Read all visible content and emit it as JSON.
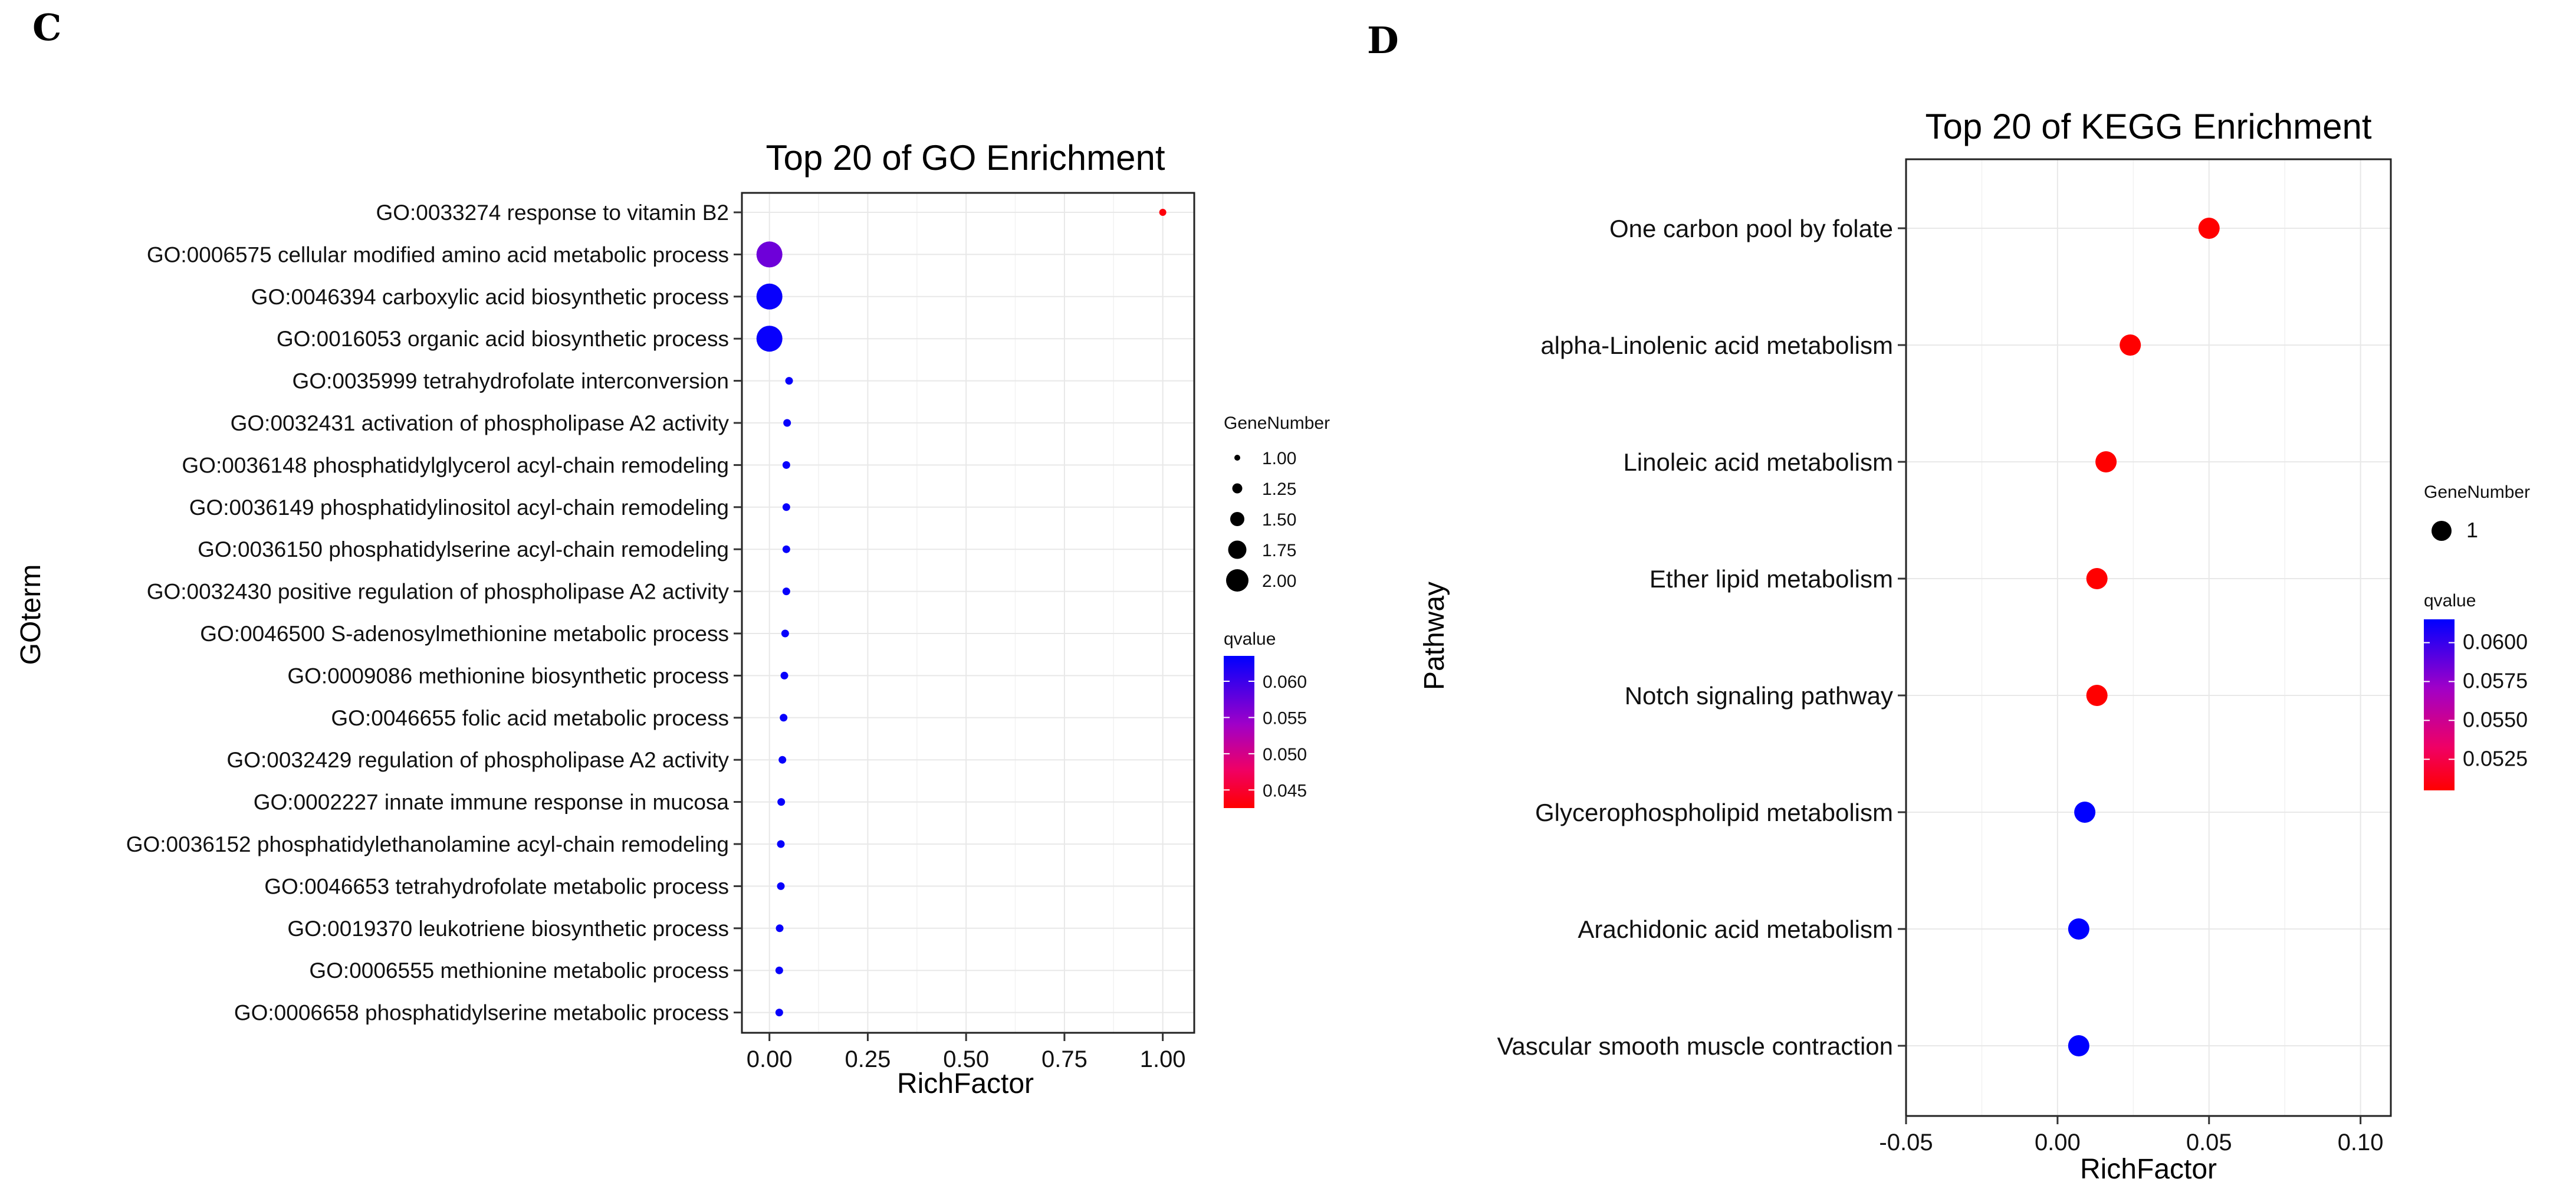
{
  "panels": [
    {
      "letter": "C"
    },
    {
      "letter": "D"
    }
  ],
  "chart_data": [
    {
      "type": "scatter",
      "title": "Top 20 of GO Enrichment",
      "xlabel": "RichFactor",
      "ylabel": "GOterm",
      "xlim": [
        -0.07,
        1.08
      ],
      "xticks": [
        0.0,
        0.25,
        0.5,
        0.75,
        1.0
      ],
      "xtick_labels": [
        "0.00",
        "0.25",
        "0.50",
        "0.75",
        "1.00"
      ],
      "grid": true,
      "categories": [
        "GO:0033274 response to vitamin B2",
        "GO:0006575 cellular modified amino acid metabolic process",
        "GO:0046394 carboxylic acid biosynthetic process",
        "GO:0016053 organic acid biosynthetic process",
        "GO:0035999 tetrahydrofolate interconversion",
        "GO:0032431 activation of phospholipase A2 activity",
        "GO:0036148 phosphatidylglycerol acyl-chain remodeling",
        "GO:0036149 phosphatidylinositol acyl-chain remodeling",
        "GO:0036150 phosphatidylserine acyl-chain remodeling",
        "GO:0032430 positive regulation of phospholipase A2 activity",
        "GO:0046500 S-adenosylmethionine metabolic process",
        "GO:0009086 methionine biosynthetic process",
        "GO:0046655 folic acid metabolic process",
        "GO:0032429 regulation of phospholipase A2 activity",
        "GO:0002227 innate immune response in mucosa",
        "GO:0036152 phosphatidylethanolamine acyl-chain remodeling",
        "GO:0046653 tetrahydrofolate metabolic process",
        "GO:0019370 leukotriene biosynthetic process",
        "GO:0006555 methionine metabolic process",
        "GO:0006658 phosphatidylserine metabolic process"
      ],
      "rich_factor": [
        1.0,
        0.0,
        0.0,
        0.0,
        0.05,
        0.045,
        0.043,
        0.043,
        0.043,
        0.043,
        0.04,
        0.038,
        0.036,
        0.033,
        0.03,
        0.029,
        0.029,
        0.026,
        0.025,
        0.025
      ],
      "gene_number": [
        1,
        2,
        2,
        2,
        1,
        1,
        1,
        1,
        1,
        1,
        1,
        1,
        1,
        1,
        1,
        1,
        1,
        1,
        1,
        1
      ],
      "qvalue": [
        0.043,
        0.057,
        0.063,
        0.063,
        0.063,
        0.063,
        0.063,
        0.063,
        0.063,
        0.063,
        0.063,
        0.063,
        0.063,
        0.063,
        0.063,
        0.063,
        0.063,
        0.063,
        0.063,
        0.063
      ],
      "legend": {
        "size_title": "GeneNumber",
        "size_labels": [
          "1.00",
          "1.25",
          "1.50",
          "1.75",
          "2.00"
        ],
        "size_values": [
          1.0,
          1.25,
          1.5,
          1.75,
          2.0
        ],
        "color_title": "qvalue",
        "color_labels": [
          "0.060",
          "0.055",
          "0.050",
          "0.045"
        ],
        "color_values": [
          0.06,
          0.055,
          0.05,
          0.045
        ],
        "color_range": [
          0.0425,
          0.0635
        ],
        "color_low": "#ff0000",
        "color_high": "#0000ff",
        "position": "right"
      }
    },
    {
      "type": "scatter",
      "title": "Top 20 of KEGG Enrichment",
      "xlabel": "RichFactor",
      "ylabel": "Pathway",
      "xlim": [
        -0.05,
        0.11
      ],
      "xticks": [
        -0.05,
        0.0,
        0.05,
        0.1
      ],
      "xtick_labels": [
        "-0.05",
        "0.00",
        "0.05",
        "0.10"
      ],
      "grid": true,
      "categories": [
        "One carbon pool by folate",
        "alpha-Linolenic acid metabolism",
        "Linoleic acid metabolism",
        "Ether lipid metabolism",
        "Notch signaling pathway",
        "Glycerophospholipid metabolism",
        "Arachidonic acid metabolism",
        "Vascular smooth muscle contraction"
      ],
      "rich_factor": [
        0.05,
        0.024,
        0.016,
        0.013,
        0.013,
        0.009,
        0.007,
        0.007
      ],
      "gene_number": [
        1,
        1,
        1,
        1,
        1,
        1,
        1,
        1
      ],
      "qvalue": [
        0.0505,
        0.0505,
        0.0505,
        0.0505,
        0.0505,
        0.0615,
        0.0615,
        0.0615
      ],
      "legend": {
        "size_title": "GeneNumber",
        "size_labels": [
          "1"
        ],
        "size_values": [
          1
        ],
        "color_title": "qvalue",
        "color_labels": [
          "0.0600",
          "0.0575",
          "0.0550",
          "0.0525"
        ],
        "color_values": [
          0.06,
          0.0575,
          0.055,
          0.0525
        ],
        "color_range": [
          0.0505,
          0.0615
        ],
        "color_low": "#ff0000",
        "color_high": "#0000ff",
        "position": "right"
      }
    }
  ]
}
